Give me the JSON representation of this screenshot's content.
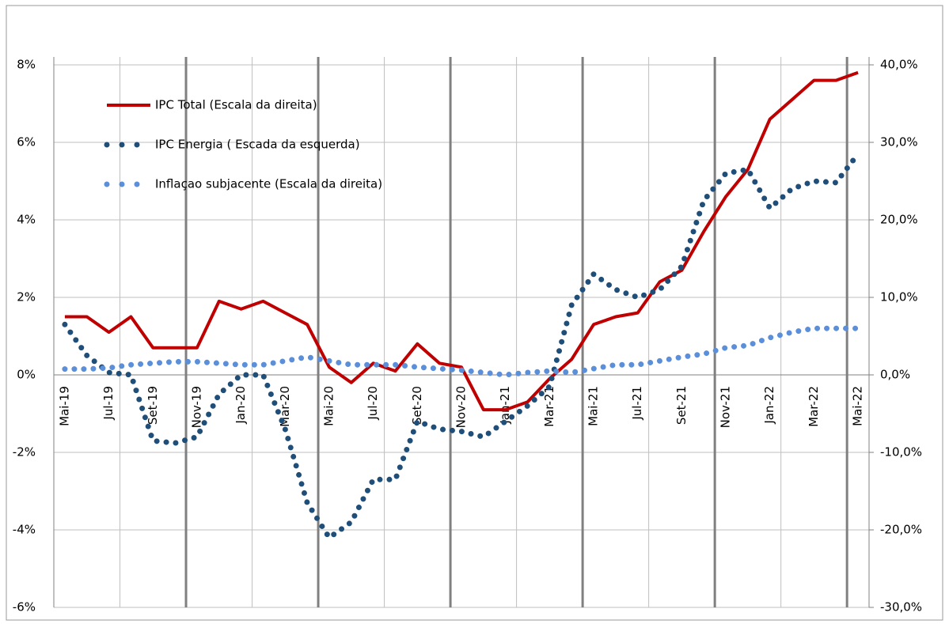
{
  "chart_data": {
    "type": "line",
    "categories": [
      "Mai-19",
      null,
      "Jul-19",
      null,
      "Set-19",
      null,
      "Nov-19",
      null,
      "Jan-20",
      null,
      "Mar-20",
      null,
      "Mai-20",
      null,
      "Jul-20",
      null,
      "Set-20",
      null,
      "Nov-20",
      null,
      "Jan-21",
      null,
      "Mar-21",
      null,
      "Mai-21",
      null,
      "Jul-21",
      null,
      "Set-21",
      null,
      "Nov-21",
      null,
      "Jan-22",
      null,
      "Mar-22",
      null,
      "Mai-22"
    ],
    "ylim": [
      -6,
      8
    ],
    "yticks": [
      {
        "value": -6,
        "label": "-6%"
      },
      {
        "value": -4,
        "label": "-4%"
      },
      {
        "value": -2,
        "label": "-2%"
      },
      {
        "value": 0,
        "label": "0%"
      },
      {
        "value": 2,
        "label": "2%"
      },
      {
        "value": 4,
        "label": "4%"
      },
      {
        "value": 6,
        "label": "6%"
      },
      {
        "value": 8,
        "label": "8%"
      }
    ],
    "y2lim": [
      -30,
      40
    ],
    "y2ticks": [
      {
        "value": -30,
        "label": "-30,0%"
      },
      {
        "value": -20,
        "label": "-20,0%"
      },
      {
        "value": -10,
        "label": "-10,0%"
      },
      {
        "value": 0,
        "label": "0,0%"
      },
      {
        "value": 10,
        "label": "10,0%"
      },
      {
        "value": 20,
        "label": "20,0%"
      },
      {
        "value": 30,
        "label": "30,0%"
      },
      {
        "value": 40,
        "label": "40,0%"
      }
    ],
    "legend": "upper left",
    "series": [
      {
        "name": "IPC Total (Escala da  direita)",
        "color": "#c00000",
        "style": "solid",
        "values": [
          1.5,
          1.5,
          1.1,
          1.5,
          0.7,
          0.7,
          0.7,
          1.9,
          1.7,
          1.9,
          1.6,
          1.3,
          0.2,
          -0.2,
          0.3,
          0.1,
          0.8,
          0.3,
          0.2,
          -0.9,
          -0.9,
          -0.7,
          -0.1,
          0.4,
          1.3,
          1.5,
          1.6,
          2.4,
          2.7,
          3.7,
          4.6,
          5.3,
          6.6,
          7.1,
          7.6,
          7.6,
          7.8
        ]
      },
      {
        "name": "IPC Energia ( Escada da esquerda)",
        "color": "#1f4e79",
        "style": "dotted",
        "axis": "y2",
        "values": [
          6.5,
          2.5,
          0.3,
          0,
          -8.5,
          -8.8,
          -8,
          -2.5,
          0,
          0,
          -7,
          -16.5,
          -21,
          -19,
          -13.5,
          -13.5,
          -6,
          -7,
          -7.3,
          -8,
          -6,
          -4,
          -1.5,
          9,
          13,
          11,
          10,
          11,
          14,
          22.5,
          26,
          26.5,
          21.5,
          24,
          25,
          24.8,
          28.5
        ]
      },
      {
        "name": "Inflaçao subjacente (Escala da direita)",
        "color": "#5b8fd9",
        "style": "dotted",
        "axis": "y2",
        "values": [
          0.75,
          0.75,
          0.9,
          1.3,
          1.5,
          1.7,
          1.7,
          1.5,
          1.3,
          1.3,
          1.8,
          2.3,
          1.8,
          1.3,
          1.3,
          1.3,
          1.0,
          0.8,
          0.6,
          0.3,
          0.0,
          0.3,
          0.5,
          0.3,
          0.8,
          1.3,
          1.3,
          1.8,
          2.3,
          2.7,
          3.5,
          3.8,
          4.8,
          5.5,
          6.0,
          6.0,
          6.0
        ]
      }
    ]
  }
}
